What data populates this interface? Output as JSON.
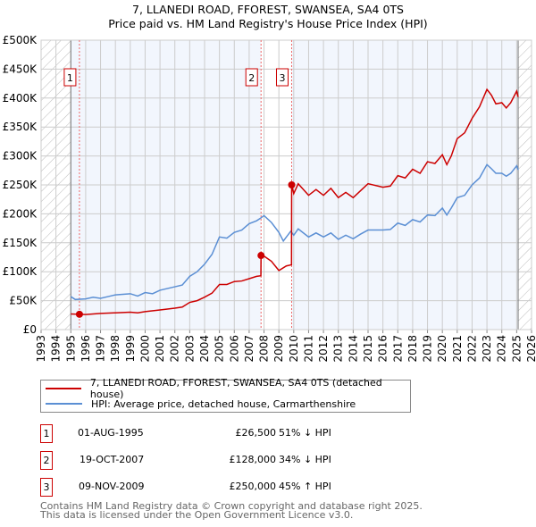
{
  "chart_data": {
    "type": "line",
    "title": "7, LLANEDI ROAD, FFOREST, SWANSEA, SA4 0TS",
    "subtitle": "Price paid vs. HM Land Registry's House Price Index (HPI)",
    "xlim": [
      1993,
      2026
    ],
    "ylim": [
      0,
      500000
    ],
    "x_ticks": [
      "1993",
      "1994",
      "1995",
      "1996",
      "1997",
      "1998",
      "1999",
      "2000",
      "2001",
      "2002",
      "2003",
      "2004",
      "2005",
      "2006",
      "2007",
      "2008",
      "2009",
      "2010",
      "2011",
      "2012",
      "2013",
      "2014",
      "2015",
      "2016",
      "2017",
      "2018",
      "2019",
      "2020",
      "2021",
      "2022",
      "2023",
      "2024",
      "2025",
      "2026"
    ],
    "y_ticks": [
      {
        "v": 0,
        "label": "£0"
      },
      {
        "v": 50000,
        "label": "£50K"
      },
      {
        "v": 100000,
        "label": "£100K"
      },
      {
        "v": 150000,
        "label": "£150K"
      },
      {
        "v": 200000,
        "label": "£200K"
      },
      {
        "v": 250000,
        "label": "£250K"
      },
      {
        "v": 300000,
        "label": "£300K"
      },
      {
        "v": 350000,
        "label": "£350K"
      },
      {
        "v": 400000,
        "label": "£400K"
      },
      {
        "v": 450000,
        "label": "£450K"
      },
      {
        "v": 500000,
        "label": "£500K"
      }
    ],
    "data_range": [
      1995,
      2025.1
    ],
    "series": [
      {
        "name": "7, LLANEDI ROAD, FFOREST, SWANSEA, SA4 0TS (detached house)",
        "color": "#cc0000",
        "x": [
          1995,
          1995.58,
          1996,
          1997,
          1998,
          1999,
          1999.5,
          2000,
          2001,
          2002,
          2002.5,
          2003,
          2003.5,
          2004,
          2004.5,
          2005,
          2005.5,
          2006,
          2006.5,
          2007,
          2007.5,
          2007.79,
          2007.8,
          2008,
          2008.5,
          2009,
          2009.5,
          2009.85,
          2009.86,
          2010,
          2010.3,
          2011,
          2011.5,
          2012,
          2012.5,
          2013,
          2013.5,
          2014,
          2014.5,
          2015,
          2016,
          2016.5,
          2017,
          2017.5,
          2018,
          2018.5,
          2019,
          2019.5,
          2020,
          2020.3,
          2020.6,
          2021,
          2021.5,
          2022,
          2022.5,
          2023,
          2023.3,
          2023.6,
          2024,
          2024.3,
          2024.6,
          2025,
          2025.1
        ],
        "y": [
          27,
          26.5,
          26,
          28,
          29,
          30,
          29,
          31,
          34,
          37,
          39,
          47,
          50,
          56,
          63,
          78,
          78,
          83,
          84,
          88,
          92,
          93,
          128,
          127,
          118,
          102,
          110,
          112,
          250,
          235,
          252,
          232,
          242,
          232,
          244,
          228,
          237,
          228,
          240,
          252,
          246,
          248,
          266,
          262,
          277,
          270,
          290,
          287,
          302,
          285,
          300,
          330,
          340,
          365,
          385,
          415,
          405,
          390,
          392,
          383,
          392,
          412,
          402
        ]
      },
      {
        "name": "HPI: Average price, detached house, Carmarthenshire",
        "color": "#5b8fd4",
        "x": [
          1995,
          1995.3,
          1996,
          1996.5,
          1997,
          1997.5,
          1998,
          1999,
          1999.5,
          2000,
          2000.5,
          2001,
          2002,
          2002.5,
          2003,
          2003.5,
          2004,
          2004.5,
          2005,
          2005.5,
          2006,
          2006.5,
          2007,
          2007.5,
          2007.8,
          2008,
          2008.5,
          2009,
          2009.3,
          2009.8,
          2010,
          2010.3,
          2011,
          2011.5,
          2012,
          2012.5,
          2013,
          2013.5,
          2014,
          2014.5,
          2015,
          2016,
          2016.5,
          2017,
          2017.5,
          2018,
          2018.5,
          2019,
          2019.5,
          2020,
          2020.3,
          2020.6,
          2021,
          2021.5,
          2022,
          2022.5,
          2023,
          2023.3,
          2023.6,
          2024,
          2024.3,
          2024.6,
          2025,
          2025.1
        ],
        "y": [
          57,
          52,
          53,
          56,
          54,
          57,
          60,
          62,
          58,
          64,
          62,
          68,
          74,
          77,
          92,
          100,
          113,
          130,
          160,
          158,
          168,
          172,
          183,
          188,
          193,
          197,
          185,
          168,
          153,
          170,
          163,
          174,
          160,
          167,
          160,
          167,
          156,
          163,
          157,
          165,
          172,
          172,
          173,
          184,
          180,
          190,
          186,
          198,
          197,
          210,
          198,
          210,
          228,
          232,
          250,
          262,
          285,
          278,
          270,
          270,
          265,
          270,
          283,
          276
        ]
      }
    ],
    "y_unit_multiplier": 1000,
    "sales": [
      {
        "label": "1",
        "x": 1995.58,
        "price": 26500,
        "date": "01-AUG-1995",
        "price_text": "£26,500",
        "hpi_text": "51% ↓ HPI"
      },
      {
        "label": "2",
        "x": 2007.8,
        "price": 128000,
        "date": "19-OCT-2007",
        "price_text": "£128,000",
        "hpi_text": "34% ↓ HPI"
      },
      {
        "label": "3",
        "x": 2009.86,
        "price": 250000,
        "date": "09-NOV-2009",
        "price_text": "£250,000",
        "hpi_text": "45% ↑ HPI"
      }
    ],
    "legend_position": "below",
    "grid": true
  },
  "footer": {
    "line1": "Contains HM Land Registry data © Crown copyright and database right 2025.",
    "line2": "This data is licensed under the Open Government Licence v3.0."
  }
}
